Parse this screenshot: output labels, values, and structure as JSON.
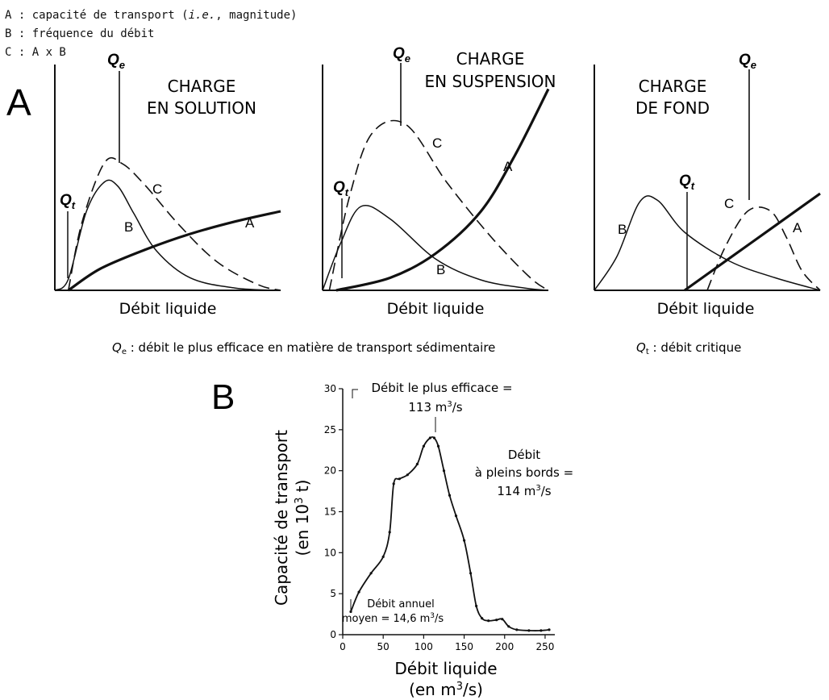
{
  "legend": {
    "a": "A : capacité de transport (",
    "a_em": "i.e.",
    "a_tail": ", magnitude)",
    "b": "B : fréquence du débit",
    "c": "C : A x B"
  },
  "panel_a": {
    "letter": "A",
    "qe_symbol": "Q",
    "qe_sub": "e",
    "qt_symbol": "Q",
    "qt_sub": "t",
    "solution": {
      "title1": "CHARGE",
      "title2": "EN SOLUTION",
      "xlabel": "Débit liquide",
      "curve_a": "A",
      "curve_b": "B",
      "curve_c": "C"
    },
    "suspension": {
      "title1": "CHARGE",
      "title2": "EN SUSPENSION",
      "xlabel": "Débit liquide",
      "curve_a": "A",
      "curve_b": "B",
      "curve_c": "C"
    },
    "fond": {
      "title1": "CHARGE",
      "title2": "DE FOND",
      "xlabel": "Débit liquide",
      "curve_a": "A",
      "curve_b": "B",
      "curve_c": "C"
    },
    "note_qe": " : débit le plus efficace en matière de transport sédimentaire",
    "note_qt": " : débit critique"
  },
  "panel_b": {
    "letter": "B",
    "ylabel1": "Capacité de transport",
    "ylabel2_pre": "(en 10",
    "ylabel2_sup": "3",
    "ylabel2_post": " t)",
    "xlabel1": "Débit liquide",
    "xlabel2_pre": "(en m",
    "xlabel2_sup": "3",
    "xlabel2_post": "/s)",
    "ann_eff1": "Débit le plus efficace =",
    "ann_eff2_pre": "113 m",
    "ann_eff2_sup": "3",
    "ann_eff2_post": "/s",
    "ann_bank1": "Débit",
    "ann_bank2": "à pleins bords =",
    "ann_bank3_pre": "114 m",
    "ann_bank3_sup": "3",
    "ann_bank3_post": "/s",
    "ann_mean1": "Débit annuel",
    "ann_mean2_pre": "moyen = 14,6 m",
    "ann_mean2_sup": "3",
    "ann_mean2_post": "/s"
  },
  "chart_data": [
    {
      "type": "line",
      "title": "CHARGE EN SOLUTION",
      "xlabel": "Débit liquide",
      "series": [
        {
          "name": "A",
          "style": "thick",
          "x": [
            0.06,
            0.2,
            0.4,
            0.6,
            0.8,
            1.0
          ],
          "y": [
            0.0,
            0.19,
            0.36,
            0.5,
            0.61,
            0.7
          ]
        },
        {
          "name": "B",
          "style": "thin",
          "x": [
            0.0,
            0.06,
            0.14,
            0.22,
            0.28,
            0.35,
            0.45,
            0.6,
            0.8,
            1.0
          ],
          "y": [
            0.0,
            0.1,
            0.7,
            0.96,
            0.92,
            0.68,
            0.35,
            0.11,
            0.02,
            0.0
          ]
        },
        {
          "name": "C",
          "style": "dashed",
          "x": [
            0.06,
            0.12,
            0.22,
            0.3,
            0.4,
            0.55,
            0.72,
            0.9,
            1.0
          ],
          "y": [
            0.0,
            0.6,
            1.13,
            1.12,
            0.93,
            0.58,
            0.25,
            0.05,
            0.0
          ]
        }
      ]
    },
    {
      "type": "line",
      "title": "CHARGE EN SUSPENSION",
      "xlabel": "Débit liquide",
      "series": [
        {
          "name": "A",
          "style": "thick",
          "x": [
            0.06,
            0.3,
            0.5,
            0.7,
            0.85,
            1.0
          ],
          "y": [
            0.0,
            0.12,
            0.35,
            0.75,
            1.28,
            1.92
          ]
        },
        {
          "name": "B",
          "style": "thin",
          "x": [
            0.0,
            0.08,
            0.17,
            0.3,
            0.5,
            0.7,
            0.9,
            1.0
          ],
          "y": [
            0.0,
            0.45,
            0.8,
            0.68,
            0.3,
            0.1,
            0.02,
            0.0
          ]
        },
        {
          "name": "C",
          "style": "dashed",
          "x": [
            0.03,
            0.12,
            0.22,
            0.37,
            0.55,
            0.75,
            0.92,
            1.0
          ],
          "y": [
            0.0,
            0.9,
            1.5,
            1.58,
            1.03,
            0.5,
            0.12,
            0.0
          ]
        }
      ]
    },
    {
      "type": "line",
      "title": "CHARGE DE FOND",
      "xlabel": "Débit liquide",
      "series": [
        {
          "name": "A",
          "style": "thick",
          "x": [
            0.4,
            0.7,
            1.0
          ],
          "y": [
            0.0,
            0.5,
            1.0
          ]
        },
        {
          "name": "B",
          "style": "thin",
          "x": [
            0.0,
            0.1,
            0.2,
            0.28,
            0.4,
            0.6,
            0.8,
            1.0
          ],
          "y": [
            0.0,
            0.35,
            0.91,
            0.93,
            0.6,
            0.3,
            0.13,
            0.0
          ]
        },
        {
          "name": "C",
          "style": "dashed",
          "x": [
            0.5,
            0.58,
            0.68,
            0.78,
            0.85,
            0.92,
            1.0
          ],
          "y": [
            0.0,
            0.45,
            0.82,
            0.82,
            0.55,
            0.2,
            0.0
          ]
        }
      ]
    },
    {
      "type": "line",
      "xlabel": "Débit liquide (en m3/s)",
      "ylabel": "Capacité de transport (en 10³ t)",
      "xlim": [
        0,
        262
      ],
      "ylim": [
        0,
        30
      ],
      "xticks": [
        0,
        50,
        100,
        150,
        200,
        250
      ],
      "yticks": [
        0,
        5,
        10,
        15,
        20,
        25,
        30
      ],
      "x": [
        10,
        20,
        35,
        50,
        58,
        63,
        70,
        80,
        92,
        100,
        108,
        113,
        118,
        125,
        132,
        140,
        150,
        158,
        165,
        172,
        180,
        190,
        197,
        205,
        215,
        230,
        245,
        255
      ],
      "y": [
        2.8,
        5.2,
        7.5,
        9.5,
        12.5,
        18.4,
        19.0,
        19.5,
        20.8,
        23.0,
        24.0,
        24.0,
        23.0,
        20.0,
        17.0,
        14.5,
        11.5,
        7.5,
        3.5,
        2.0,
        1.7,
        1.8,
        1.9,
        1.0,
        0.6,
        0.5,
        0.5,
        0.6
      ]
    }
  ]
}
